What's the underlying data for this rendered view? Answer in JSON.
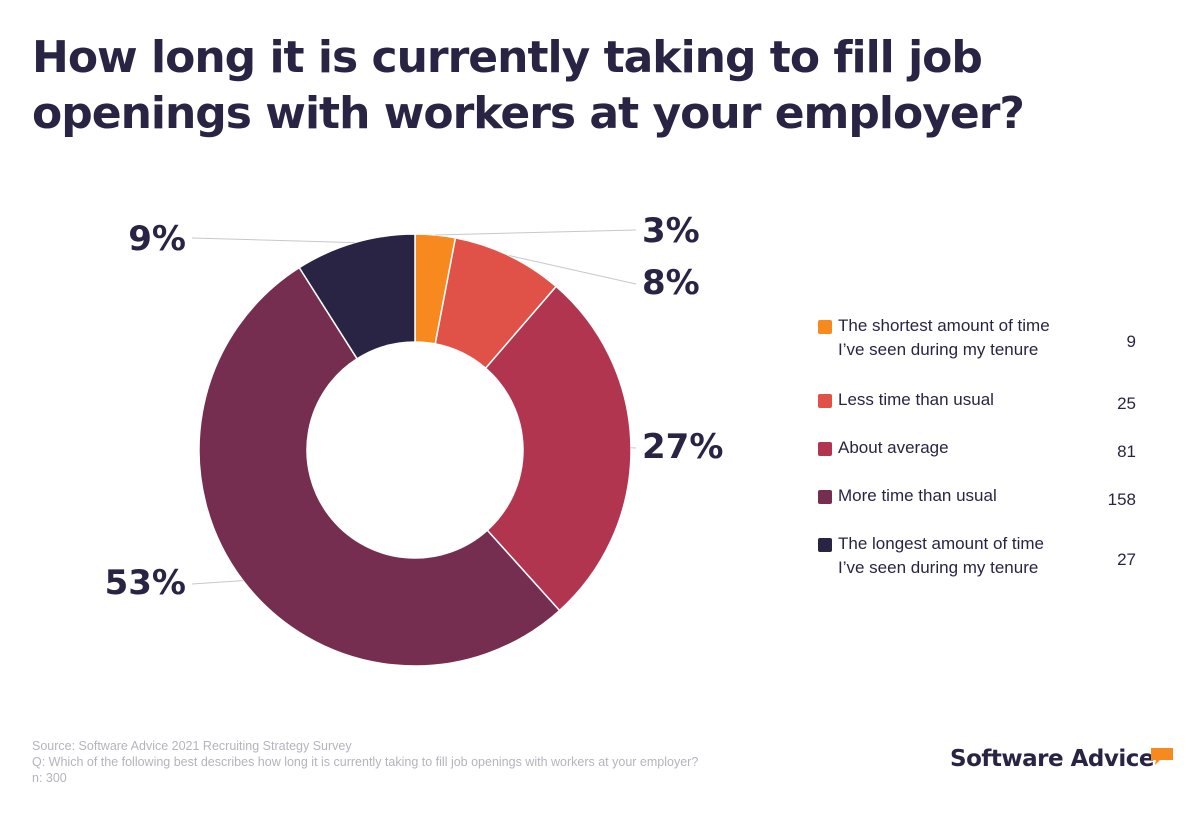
{
  "title": "How long it is currently taking to fill job openings with workers at your employer?",
  "chart_data": {
    "type": "pie",
    "variant": "donut",
    "slices": [
      {
        "label": "The shortest amount of time I’ve seen during my tenure",
        "count": 9,
        "percent_label": "3%",
        "color": "#f7891e"
      },
      {
        "label": "Less time than usual",
        "count": 25,
        "percent_label": "8%",
        "color": "#e05147"
      },
      {
        "label": "About average",
        "count": 81,
        "percent_label": "27%",
        "color": "#b23550"
      },
      {
        "label": "More time than usual",
        "count": 158,
        "percent_label": "53%",
        "color": "#752e4f"
      },
      {
        "label": "The longest amount of time I’ve seen during my tenure",
        "count": 27,
        "percent_label": "9%",
        "color": "#2a2444"
      }
    ],
    "total": 300,
    "legend_position": "right"
  },
  "legend": [
    {
      "lines": [
        "The shortest amount of time",
        "I’ve seen during my tenure"
      ],
      "count": "9"
    },
    {
      "lines": [
        "Less time than usual"
      ],
      "count": "25"
    },
    {
      "lines": [
        "About average"
      ],
      "count": "81"
    },
    {
      "lines": [
        "More time than usual"
      ],
      "count": "158"
    },
    {
      "lines": [
        "The longest amount of time",
        "I’ve seen during my tenure"
      ],
      "count": "27"
    }
  ],
  "footer": {
    "source": "Source: Software Advice 2021 Recruiting Strategy Survey",
    "question": "Q: Which of the following best describes how long it is currently taking to fill job openings with workers at your employer?",
    "n": "n: 300"
  },
  "brand": {
    "name": "Software Advice",
    "accent": "#f7891e"
  }
}
